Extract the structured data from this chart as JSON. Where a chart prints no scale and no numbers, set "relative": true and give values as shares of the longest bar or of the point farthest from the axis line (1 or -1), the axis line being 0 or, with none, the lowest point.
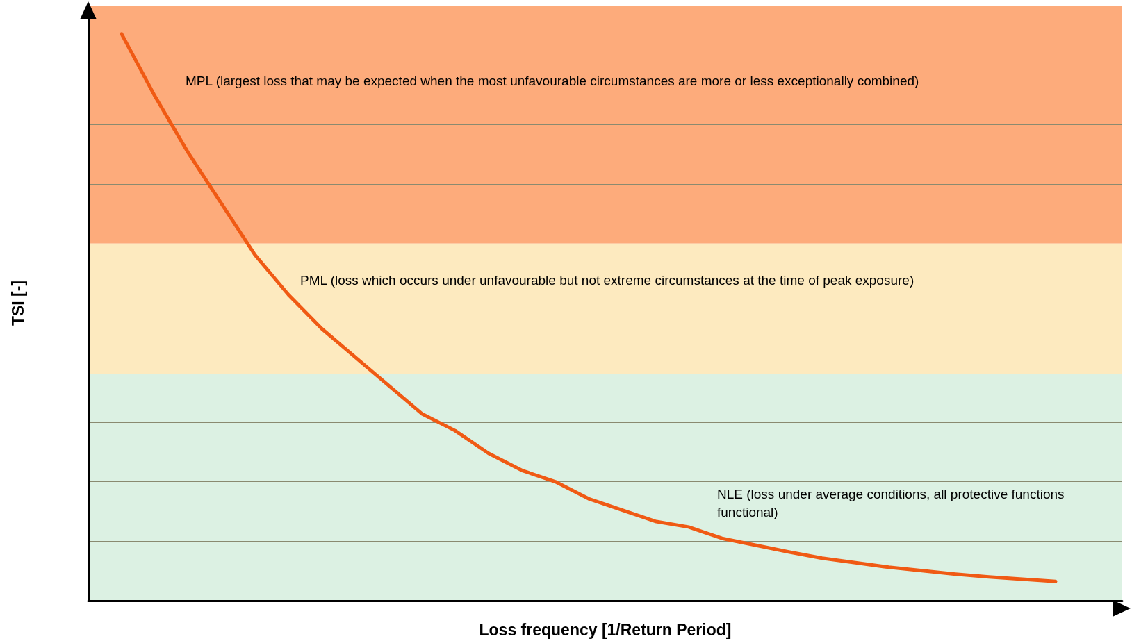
{
  "chart_data": {
    "type": "line",
    "relative": true,
    "xlabel": "Loss frequency [1/Return Period]",
    "ylabel": "TSI [-]",
    "categories": [
      null,
      null,
      null,
      null,
      null,
      null,
      null,
      null,
      null,
      null,
      null,
      null,
      null,
      null,
      null,
      null,
      null,
      null,
      null,
      null,
      null,
      null,
      null,
      null,
      null,
      null,
      null,
      null,
      null,
      null,
      null,
      null
    ],
    "series": [
      {
        "color": "#f05a14",
        "values": [
          null,
          1.0,
          0.89,
          0.79,
          0.7,
          0.61,
          0.54,
          0.48,
          0.43,
          0.38,
          0.33,
          0.3,
          0.26,
          0.23,
          0.21,
          0.18,
          0.16,
          0.14,
          0.13,
          0.11,
          0.098,
          0.086,
          0.075,
          0.067,
          0.059,
          0.053,
          0.047,
          0.042,
          0.038,
          0.034,
          null,
          null
        ]
      }
    ],
    "bands": [
      {
        "axis": "y",
        "from": 0.63,
        "to": 1.05,
        "color": "#fdab7b",
        "label": "MPL (largest loss that may be expected when the most unfavourable circumstances are more or less exceptionally combined)"
      },
      {
        "axis": "y",
        "from": 0.4,
        "to": 0.63,
        "color": "#fdeabf",
        "label": "PML (loss which occurs under unfavourable but not extreme circumstances at the time of peak exposure)"
      },
      {
        "axis": "y",
        "from": 0,
        "to": 0.4,
        "color": "#dcf1e3",
        "label": "NLE (loss under average conditions, all protective functions functional)"
      }
    ],
    "grid": "y",
    "marker": "none",
    "line_style": "solid"
  }
}
